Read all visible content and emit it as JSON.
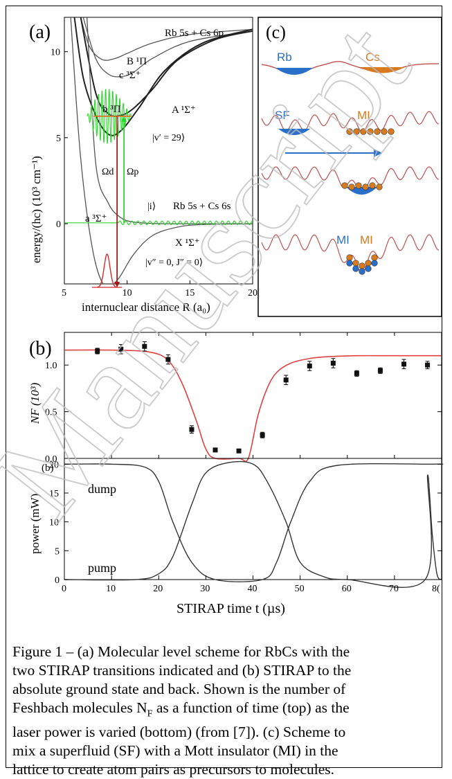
{
  "panel_a": {
    "label": "(a)",
    "state_labels": {
      "b1pi": "B ¹Π",
      "c3sigma": "c ³Σ⁺",
      "b3pi": "b ³Π",
      "A1sigma": "A ¹Σ⁺",
      "upper_asymptote": "Rb 5s + Cs 6p",
      "lower_asymptote": "Rb 5s + Cs 6s",
      "v29": "|v′ = 29⟩",
      "initial": "|i⟩",
      "a3sigma": "a ³Σ⁺",
      "X1sigma": "X ¹Σ⁺",
      "ground": "|v″ = 0, J″ = 0⟩",
      "omega_d": "Ωd",
      "omega_p": "Ωp"
    },
    "xlabel": "internuclear distance R (a₀)",
    "ylabel": "energy/(hc) (10³ cm⁻¹)",
    "xticks": [
      "5",
      "10",
      "15",
      "20"
    ],
    "yticks": [
      "0",
      "5",
      "10"
    ]
  },
  "panel_c": {
    "label": "(c)",
    "labels": {
      "rb": "Rb",
      "cs": "Cs",
      "sf": "SF",
      "mi1": "MI",
      "mi2": "MI",
      "mi3": "MI"
    },
    "colors": {
      "rb": "#2a6fc9",
      "cs": "#d87a1e",
      "lattice": "#c0504d",
      "arrow": "#2a6fc9"
    }
  },
  "panel_b_top": {
    "label": "(b)",
    "ylabel": "NF (10³)",
    "yticks": [
      "0.0",
      "0.5",
      "1.0"
    ]
  },
  "panel_b_bottom": {
    "label": "(b)",
    "ylabel": "power (mW)",
    "yticks": [
      "0",
      "5",
      "10",
      "15",
      "20"
    ],
    "xticks": [
      "0",
      "10",
      "20",
      "30",
      "40",
      "50",
      "60",
      "70",
      "8("
    ],
    "xlabel": "STIRAP time t (µs)",
    "curve_labels": {
      "dump": "dump",
      "pump": "pump"
    }
  },
  "watermark": "Manuscript",
  "caption": {
    "line1": "Figure 1 – (a) Molecular level scheme for RbCs with the",
    "line2": "two STIRAP transitions indicated and (b) STIRAP to the",
    "line3": "absolute ground state and back. Shown is the number of",
    "line4_a": "Feshbach molecules N",
    "line4_sub": "F",
    "line4_b": " as a function of time (top) as the",
    "line5": "laser power is varied (bottom) (from [7]). (c) Scheme to",
    "line6": "mix a superfluid (SF) with a Mott insulator (MI) in the",
    "line7": "lattice to create atom pairs as precursors to molecules."
  },
  "chart_data": [
    {
      "type": "line",
      "panel": "a",
      "xlabel": "internuclear distance R (a₀)",
      "ylabel": "energy/(hc) (10³ cm⁻¹)",
      "xlim": [
        5,
        20
      ],
      "ylim": [
        -3.5,
        12
      ],
      "grid": false,
      "series": [
        {
          "name": "B ¹Π",
          "x": [
            6.3,
            7,
            8,
            9,
            10,
            12,
            15,
            20
          ],
          "y": [
            12,
            10.3,
            9.55,
            9.6,
            9.9,
            10.5,
            11.0,
            11.3
          ]
        },
        {
          "name": "c ³Σ⁺",
          "x": [
            6.5,
            7.5,
            8.5,
            9.5,
            10.5,
            12,
            15,
            20
          ],
          "y": [
            12,
            9.6,
            8.7,
            8.55,
            8.8,
            9.6,
            10.6,
            11.2
          ]
        },
        {
          "name": "b ³Π",
          "x": [
            5.8,
            6.5,
            7.5,
            8.5,
            9.5,
            11,
            13,
            16,
            20
          ],
          "y": [
            12,
            8.5,
            6.3,
            5.2,
            5.4,
            6.8,
            8.9,
            10.5,
            11.3
          ]
        },
        {
          "name": "A ¹Σ⁺",
          "x": [
            6.3,
            7.5,
            8.5,
            9.5,
            10.5,
            12,
            14,
            17,
            20
          ],
          "y": [
            12,
            7.6,
            6.4,
            6.3,
            6.7,
            7.8,
            9.5,
            10.7,
            11.2
          ]
        },
        {
          "name": "a ³Σ⁺",
          "x": [
            6.8,
            7.5,
            8.5,
            9.5,
            10.5,
            12,
            14,
            20
          ],
          "y": [
            12,
            3.5,
            1.2,
            0.35,
            0.1,
            0.02,
            0,
            0
          ]
        },
        {
          "name": "X ¹Σ⁺",
          "x": [
            5.5,
            6.3,
            7.3,
            8.3,
            9.3,
            10.5,
            12,
            14,
            16,
            20
          ],
          "y": [
            12,
            3.8,
            -1.7,
            -3.7,
            -3.2,
            -1.8,
            -0.7,
            -0.2,
            -0.05,
            0
          ]
        }
      ],
      "levels": [
        {
          "name": "|v′ = 29⟩",
          "y": 6.25,
          "x": [
            7.3,
            10.3
          ]
        },
        {
          "name": "|i⟩",
          "y": 0.05,
          "x": [
            9.3,
            20
          ]
        }
      ],
      "transitions": [
        {
          "name": "Ωd",
          "x": 9.2,
          "y": [
            6.25,
            -3.7
          ]
        },
        {
          "name": "Ωp",
          "x": 9.75,
          "y": [
            0.05,
            6.25
          ]
        }
      ],
      "xticks": [
        5,
        10,
        15,
        20
      ],
      "yticks": [
        0,
        5,
        10
      ]
    },
    {
      "type": "scatter",
      "panel": "b-top",
      "ylabel": "NF (10³)",
      "xlim": [
        0,
        80
      ],
      "ylim": [
        0,
        1.35
      ],
      "series": [
        {
          "x": [
            7,
            12,
            17,
            22,
            27,
            32,
            37,
            42,
            47,
            52,
            57,
            62,
            67,
            72,
            77
          ],
          "y": [
            1.15,
            1.17,
            1.2,
            1.06,
            0.31,
            0.09,
            0.08,
            0.25,
            0.84,
            0.99,
            1.02,
            0.91,
            0.94,
            1.01,
            1.0
          ],
          "error": [
            0.03,
            0.05,
            0.05,
            0.05,
            0.04,
            0.02,
            0.02,
            0.03,
            0.05,
            0.05,
            0.05,
            0.03,
            0.03,
            0.05,
            0.04
          ]
        },
        {
          "type": "line",
          "x": [
            0,
            10,
            18,
            22,
            25,
            28,
            30,
            32,
            37,
            39,
            41,
            43,
            45,
            48,
            52,
            56,
            62,
            70,
            80
          ],
          "y": [
            1.16,
            1.16,
            1.14,
            1.05,
            0.8,
            0.4,
            0.1,
            0.0,
            0.0,
            0.0,
            0.45,
            0.75,
            0.92,
            1.02,
            1.07,
            1.09,
            1.1,
            1.1,
            1.1
          ]
        }
      ],
      "yticks": [
        0.0,
        0.5,
        1.0
      ]
    },
    {
      "type": "line",
      "panel": "b-bottom",
      "xlabel": "STIRAP time t (µs)",
      "ylabel": "power (mW)",
      "xlim": [
        0,
        80
      ],
      "ylim": [
        0,
        21
      ],
      "series": [
        {
          "name": "dump",
          "x": [
            0,
            10,
            17,
            20,
            23,
            27,
            32,
            42,
            45,
            48,
            52,
            58,
            78,
            80
          ],
          "y": [
            20,
            20,
            19.5,
            17,
            10,
            3,
            0,
            0,
            3,
            10,
            17,
            19.8,
            20,
            20
          ]
        },
        {
          "name": "pump",
          "x": [
            0,
            15,
            20,
            23,
            27,
            30,
            35,
            40,
            43,
            47,
            50,
            55,
            60,
            76.5,
            77,
            78,
            79,
            80
          ],
          "y": [
            0,
            0,
            1,
            4,
            13,
            18.5,
            20.3,
            20,
            17,
            10,
            3,
            0.5,
            0,
            0,
            18,
            8,
            1,
            0
          ]
        }
      ],
      "xticks": [
        0,
        10,
        20,
        30,
        40,
        50,
        60,
        70,
        80
      ],
      "yticks": [
        0,
        5,
        10,
        15,
        20
      ]
    }
  ]
}
